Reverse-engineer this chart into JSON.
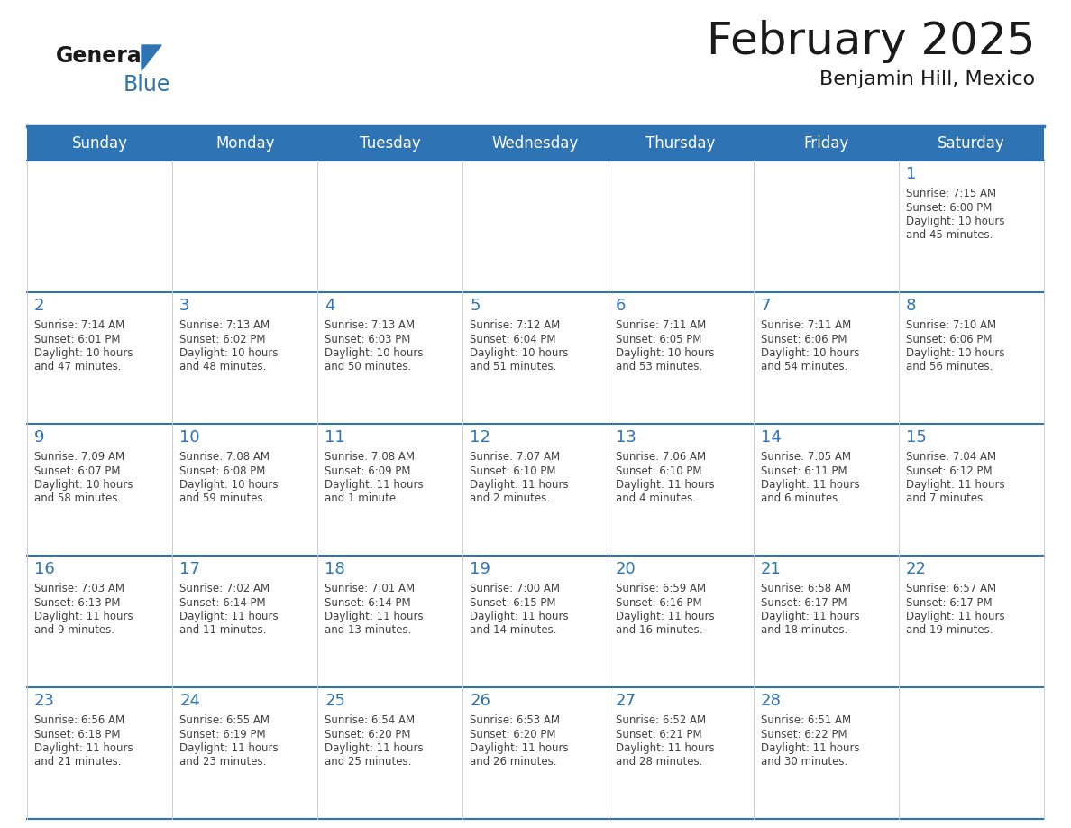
{
  "title": "February 2025",
  "subtitle": "Benjamin Hill, Mexico",
  "header_color": "#2E74B5",
  "header_text_color": "#FFFFFF",
  "day_names": [
    "Sunday",
    "Monday",
    "Tuesday",
    "Wednesday",
    "Thursday",
    "Friday",
    "Saturday"
  ],
  "cell_bg_color": "#FFFFFF",
  "border_color": "#2E74B5",
  "number_color": "#2E74B5",
  "text_color": "#404040",
  "logo_general_color": "#1a1a1a",
  "logo_blue_color": "#2E74B5",
  "logo_triangle_color": "#2E74B5",
  "title_color": "#1a1a1a",
  "subtitle_color": "#1a1a1a",
  "title_fontsize": 36,
  "subtitle_fontsize": 16,
  "day_name_fontsize": 12,
  "day_number_fontsize": 13,
  "cell_text_fontsize": 8.5,
  "calendar_data": [
    [
      null,
      null,
      null,
      null,
      null,
      null,
      {
        "day": 1,
        "sunrise": "7:15 AM",
        "sunset": "6:00 PM",
        "daylight": "10 hours\nand 45 minutes."
      }
    ],
    [
      {
        "day": 2,
        "sunrise": "7:14 AM",
        "sunset": "6:01 PM",
        "daylight": "10 hours\nand 47 minutes."
      },
      {
        "day": 3,
        "sunrise": "7:13 AM",
        "sunset": "6:02 PM",
        "daylight": "10 hours\nand 48 minutes."
      },
      {
        "day": 4,
        "sunrise": "7:13 AM",
        "sunset": "6:03 PM",
        "daylight": "10 hours\nand 50 minutes."
      },
      {
        "day": 5,
        "sunrise": "7:12 AM",
        "sunset": "6:04 PM",
        "daylight": "10 hours\nand 51 minutes."
      },
      {
        "day": 6,
        "sunrise": "7:11 AM",
        "sunset": "6:05 PM",
        "daylight": "10 hours\nand 53 minutes."
      },
      {
        "day": 7,
        "sunrise": "7:11 AM",
        "sunset": "6:06 PM",
        "daylight": "10 hours\nand 54 minutes."
      },
      {
        "day": 8,
        "sunrise": "7:10 AM",
        "sunset": "6:06 PM",
        "daylight": "10 hours\nand 56 minutes."
      }
    ],
    [
      {
        "day": 9,
        "sunrise": "7:09 AM",
        "sunset": "6:07 PM",
        "daylight": "10 hours\nand 58 minutes."
      },
      {
        "day": 10,
        "sunrise": "7:08 AM",
        "sunset": "6:08 PM",
        "daylight": "10 hours\nand 59 minutes."
      },
      {
        "day": 11,
        "sunrise": "7:08 AM",
        "sunset": "6:09 PM",
        "daylight": "11 hours\nand 1 minute."
      },
      {
        "day": 12,
        "sunrise": "7:07 AM",
        "sunset": "6:10 PM",
        "daylight": "11 hours\nand 2 minutes."
      },
      {
        "day": 13,
        "sunrise": "7:06 AM",
        "sunset": "6:10 PM",
        "daylight": "11 hours\nand 4 minutes."
      },
      {
        "day": 14,
        "sunrise": "7:05 AM",
        "sunset": "6:11 PM",
        "daylight": "11 hours\nand 6 minutes."
      },
      {
        "day": 15,
        "sunrise": "7:04 AM",
        "sunset": "6:12 PM",
        "daylight": "11 hours\nand 7 minutes."
      }
    ],
    [
      {
        "day": 16,
        "sunrise": "7:03 AM",
        "sunset": "6:13 PM",
        "daylight": "11 hours\nand 9 minutes."
      },
      {
        "day": 17,
        "sunrise": "7:02 AM",
        "sunset": "6:14 PM",
        "daylight": "11 hours\nand 11 minutes."
      },
      {
        "day": 18,
        "sunrise": "7:01 AM",
        "sunset": "6:14 PM",
        "daylight": "11 hours\nand 13 minutes."
      },
      {
        "day": 19,
        "sunrise": "7:00 AM",
        "sunset": "6:15 PM",
        "daylight": "11 hours\nand 14 minutes."
      },
      {
        "day": 20,
        "sunrise": "6:59 AM",
        "sunset": "6:16 PM",
        "daylight": "11 hours\nand 16 minutes."
      },
      {
        "day": 21,
        "sunrise": "6:58 AM",
        "sunset": "6:17 PM",
        "daylight": "11 hours\nand 18 minutes."
      },
      {
        "day": 22,
        "sunrise": "6:57 AM",
        "sunset": "6:17 PM",
        "daylight": "11 hours\nand 19 minutes."
      }
    ],
    [
      {
        "day": 23,
        "sunrise": "6:56 AM",
        "sunset": "6:18 PM",
        "daylight": "11 hours\nand 21 minutes."
      },
      {
        "day": 24,
        "sunrise": "6:55 AM",
        "sunset": "6:19 PM",
        "daylight": "11 hours\nand 23 minutes."
      },
      {
        "day": 25,
        "sunrise": "6:54 AM",
        "sunset": "6:20 PM",
        "daylight": "11 hours\nand 25 minutes."
      },
      {
        "day": 26,
        "sunrise": "6:53 AM",
        "sunset": "6:20 PM",
        "daylight": "11 hours\nand 26 minutes."
      },
      {
        "day": 27,
        "sunrise": "6:52 AM",
        "sunset": "6:21 PM",
        "daylight": "11 hours\nand 28 minutes."
      },
      {
        "day": 28,
        "sunrise": "6:51 AM",
        "sunset": "6:22 PM",
        "daylight": "11 hours\nand 30 minutes."
      },
      null
    ]
  ]
}
